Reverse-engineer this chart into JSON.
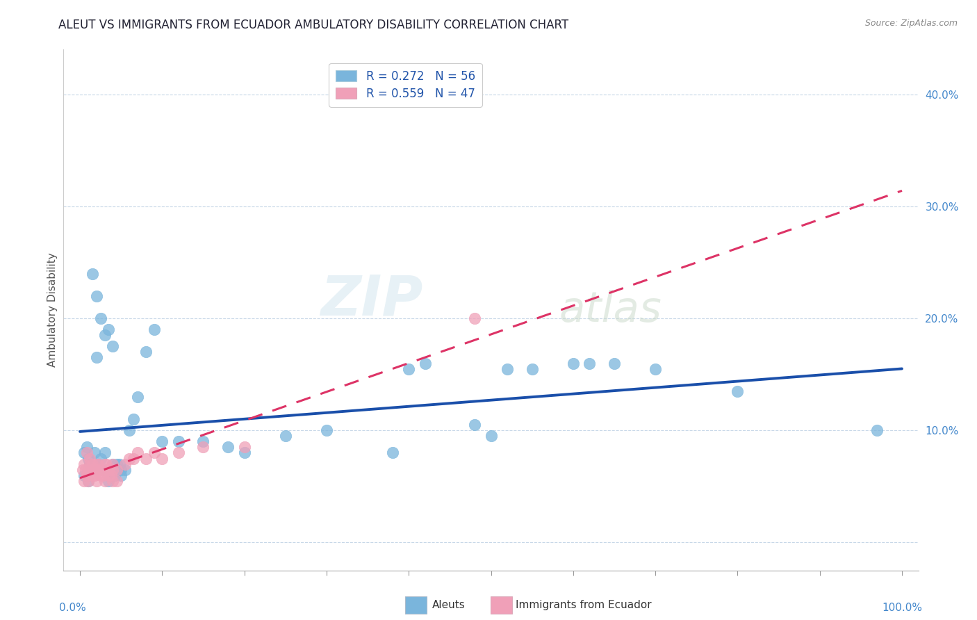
{
  "title": "ALEUT VS IMMIGRANTS FROM ECUADOR AMBULATORY DISABILITY CORRELATION CHART",
  "source": "Source: ZipAtlas.com",
  "ylabel": "Ambulatory Disability",
  "aleuts_R": 0.272,
  "aleuts_N": 56,
  "ecuador_R": 0.559,
  "ecuador_N": 47,
  "aleuts_color": "#7ab5dc",
  "ecuador_color": "#f0a0b8",
  "aleuts_line_color": "#1a4faa",
  "ecuador_line_color": "#dd3366",
  "watermark_zip": "ZIP",
  "watermark_atlas": "atlas",
  "aleuts_x": [
    0.005,
    0.008,
    0.01,
    0.012,
    0.015,
    0.018,
    0.02,
    0.022,
    0.025,
    0.028,
    0.03,
    0.032,
    0.035,
    0.038,
    0.04,
    0.042,
    0.045,
    0.048,
    0.05,
    0.005,
    0.01,
    0.015,
    0.02,
    0.025,
    0.02,
    0.03,
    0.035,
    0.04,
    0.045,
    0.05,
    0.055,
    0.06,
    0.065,
    0.07,
    0.08,
    0.09,
    0.1,
    0.12,
    0.15,
    0.18,
    0.2,
    0.25,
    0.3,
    0.38,
    0.4,
    0.42,
    0.48,
    0.5,
    0.52,
    0.55,
    0.6,
    0.62,
    0.65,
    0.7,
    0.8,
    0.97
  ],
  "aleuts_y": [
    0.08,
    0.085,
    0.075,
    0.07,
    0.065,
    0.08,
    0.065,
    0.07,
    0.075,
    0.065,
    0.08,
    0.065,
    0.055,
    0.06,
    0.07,
    0.06,
    0.065,
    0.07,
    0.065,
    0.06,
    0.055,
    0.24,
    0.22,
    0.2,
    0.165,
    0.185,
    0.19,
    0.175,
    0.07,
    0.06,
    0.065,
    0.1,
    0.11,
    0.13,
    0.17,
    0.19,
    0.09,
    0.09,
    0.09,
    0.085,
    0.08,
    0.095,
    0.1,
    0.08,
    0.155,
    0.16,
    0.105,
    0.095,
    0.155,
    0.155,
    0.16,
    0.16,
    0.16,
    0.155,
    0.135,
    0.1
  ],
  "ecuador_x": [
    0.003,
    0.005,
    0.007,
    0.008,
    0.01,
    0.012,
    0.015,
    0.018,
    0.02,
    0.022,
    0.025,
    0.028,
    0.03,
    0.032,
    0.035,
    0.038,
    0.04,
    0.008,
    0.012,
    0.015,
    0.018,
    0.022,
    0.025,
    0.03,
    0.035,
    0.04,
    0.045,
    0.005,
    0.01,
    0.015,
    0.02,
    0.025,
    0.03,
    0.035,
    0.04,
    0.045,
    0.055,
    0.06,
    0.065,
    0.07,
    0.08,
    0.09,
    0.1,
    0.12,
    0.15,
    0.2,
    0.48
  ],
  "ecuador_y": [
    0.065,
    0.07,
    0.065,
    0.06,
    0.065,
    0.07,
    0.065,
    0.06,
    0.065,
    0.07,
    0.065,
    0.06,
    0.065,
    0.07,
    0.065,
    0.06,
    0.065,
    0.08,
    0.075,
    0.07,
    0.065,
    0.07,
    0.065,
    0.07,
    0.065,
    0.07,
    0.065,
    0.055,
    0.055,
    0.06,
    0.055,
    0.06,
    0.055,
    0.06,
    0.055,
    0.055,
    0.07,
    0.075,
    0.075,
    0.08,
    0.075,
    0.08,
    0.075,
    0.08,
    0.085,
    0.085,
    0.2
  ],
  "xlim": [
    -0.02,
    1.02
  ],
  "ylim": [
    -0.025,
    0.44
  ],
  "yticks": [
    0.0,
    0.1,
    0.2,
    0.3,
    0.4
  ]
}
